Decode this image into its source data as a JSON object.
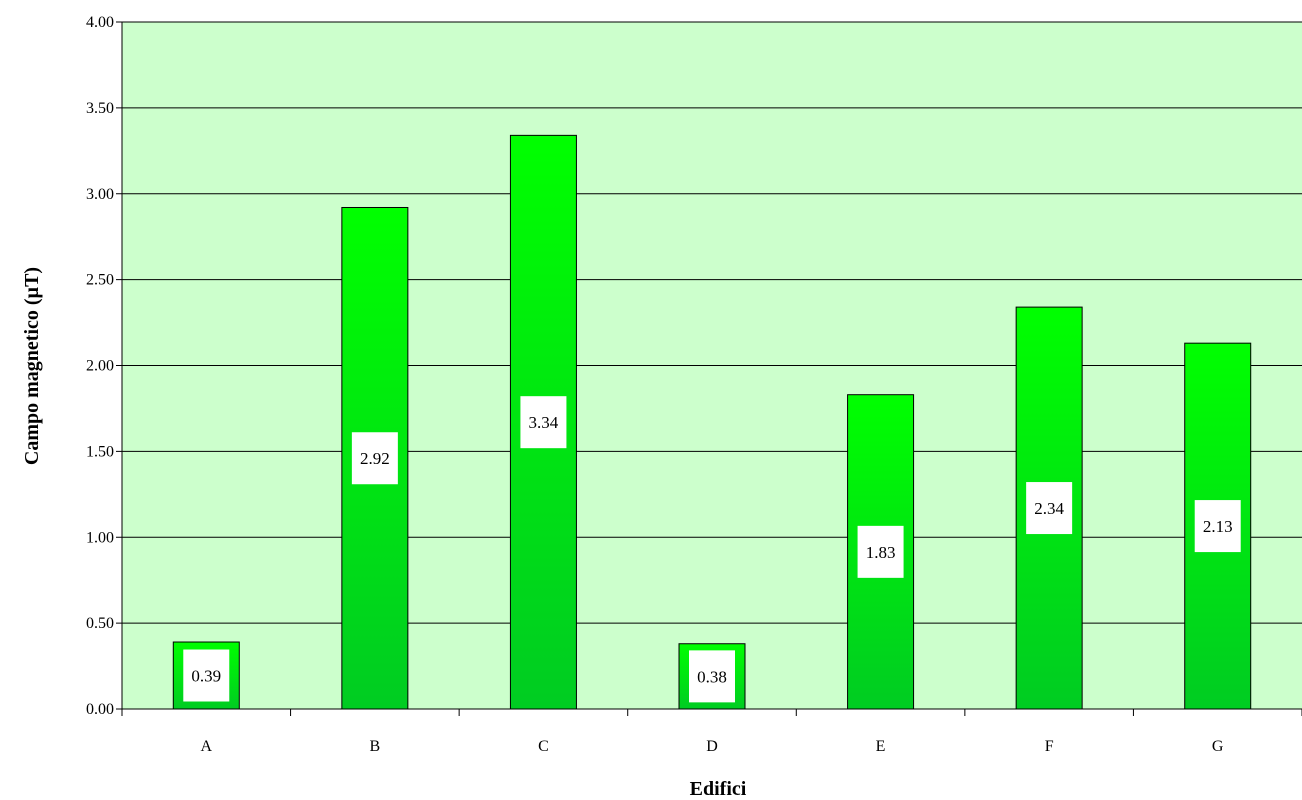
{
  "chart_data": {
    "type": "bar",
    "title": "",
    "xlabel": "Edifici",
    "ylabel": "Campo magnetico (µT)",
    "categories": [
      "A",
      "B",
      "C",
      "D",
      "E",
      "F",
      "G"
    ],
    "values": [
      0.39,
      2.92,
      3.34,
      0.38,
      1.83,
      2.34,
      2.13
    ],
    "data_labels": [
      "0.39",
      "2.92",
      "3.34",
      "0.38",
      "1.83",
      "2.34",
      "2.13"
    ],
    "ylim": [
      0,
      4
    ],
    "yticks": [
      "0.00",
      "0.50",
      "1.00",
      "1.50",
      "2.00",
      "2.50",
      "3.00",
      "3.50",
      "4.00"
    ],
    "grid": true,
    "legend": "none",
    "colors": {
      "plot_background": "#ccffcc",
      "bar_top": "#00ff00",
      "bar_bottom": "#00cc22",
      "bar_border": "#000000",
      "gridline": "#000000",
      "label_box": "#ffffff"
    }
  }
}
